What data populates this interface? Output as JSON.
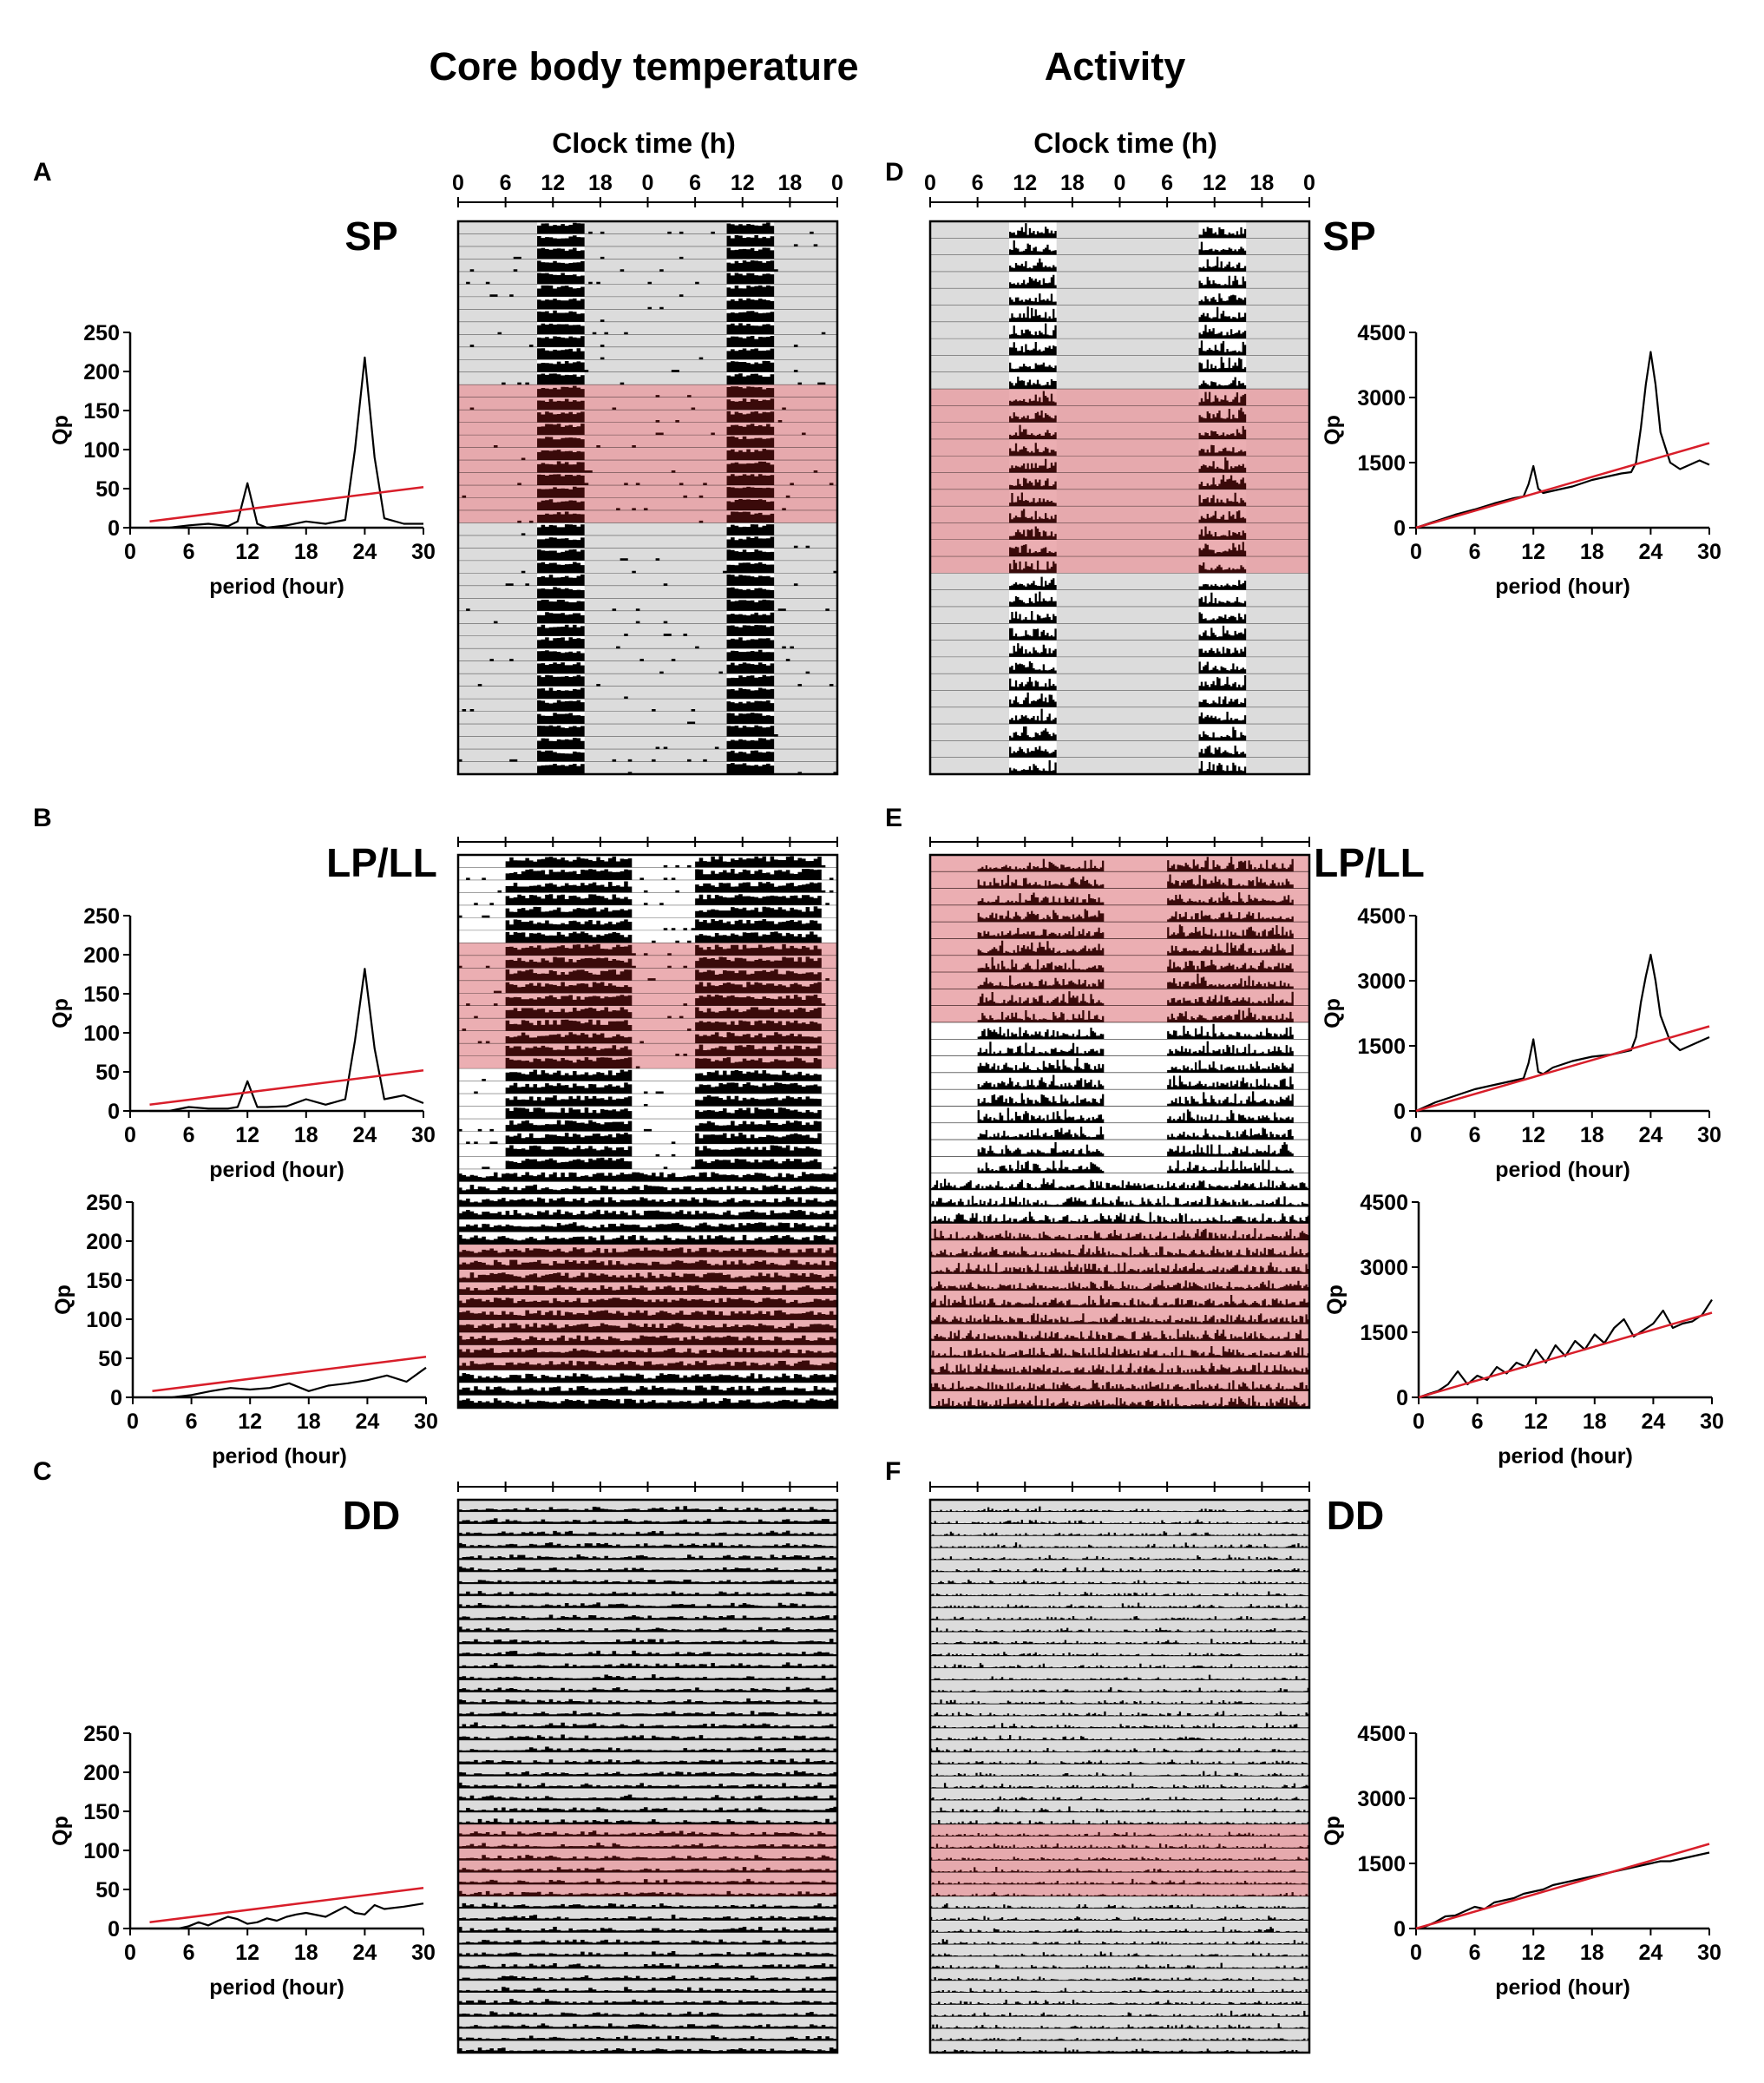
{
  "headers": {
    "temperature": "Core body temperature",
    "activity": "Activity",
    "clock_time_left": "Clock time (h)",
    "clock_time_right": "Clock time (h)"
  },
  "panel_letters": {
    "A": "A",
    "B": "B",
    "C": "C",
    "D": "D",
    "E": "E",
    "F": "F"
  },
  "conditions": {
    "A": "SP",
    "B": "LP/LL",
    "C": "DD",
    "D": "SP",
    "E": "LP/LL",
    "F": "DD"
  },
  "clock_ticks": [
    "0",
    "6",
    "12",
    "18",
    "0",
    "6",
    "12",
    "18",
    "0"
  ],
  "colors": {
    "highlight": "#e8a0a4",
    "line": "#000000",
    "significance": "#d81e2a",
    "background_gray": "#dcdcdc"
  },
  "chart_data": [
    {
      "id": "A_periodogram",
      "type": "line",
      "title": "",
      "xlabel": "period (hour)",
      "ylabel": "Qp",
      "xlim": [
        0,
        30
      ],
      "ylim": [
        0,
        250
      ],
      "xticks": [
        "0",
        "6",
        "12",
        "18",
        "24",
        "30"
      ],
      "yticks": [
        "0",
        "50",
        "100",
        "150",
        "200",
        "250"
      ],
      "series": [
        {
          "name": "Qp",
          "x": [
            2,
            4,
            6,
            8,
            10,
            11,
            12,
            13,
            14,
            16,
            18,
            20,
            22,
            23,
            24,
            25,
            26,
            28,
            30
          ],
          "y": [
            0,
            0,
            3,
            5,
            2,
            8,
            57,
            5,
            0,
            3,
            8,
            5,
            10,
            100,
            218,
            90,
            12,
            5,
            5
          ]
        },
        {
          "name": "significance",
          "x": [
            2,
            30
          ],
          "y": [
            8,
            52
          ]
        }
      ]
    },
    {
      "id": "B_periodogram_top",
      "type": "line",
      "title": "",
      "xlabel": "period (hour)",
      "ylabel": "Qp",
      "xlim": [
        0,
        30
      ],
      "ylim": [
        0,
        250
      ],
      "xticks": [
        "0",
        "6",
        "12",
        "18",
        "24",
        "30"
      ],
      "yticks": [
        "0",
        "50",
        "100",
        "150",
        "200",
        "250"
      ],
      "series": [
        {
          "name": "Qp",
          "x": [
            2,
            4,
            6,
            8,
            10,
            11,
            12,
            13,
            14,
            16,
            18,
            20,
            22,
            23,
            24,
            25,
            26,
            28,
            30
          ],
          "y": [
            0,
            0,
            5,
            3,
            3,
            5,
            38,
            5,
            5,
            6,
            15,
            8,
            15,
            90,
            182,
            80,
            15,
            20,
            10
          ]
        },
        {
          "name": "significance",
          "x": [
            2,
            30
          ],
          "y": [
            8,
            52
          ]
        }
      ]
    },
    {
      "id": "B_periodogram_bottom",
      "type": "line",
      "title": "",
      "xlabel": "period (hour)",
      "ylabel": "Qp",
      "xlim": [
        0,
        30
      ],
      "ylim": [
        0,
        250
      ],
      "xticks": [
        "0",
        "6",
        "12",
        "18",
        "24",
        "30"
      ],
      "yticks": [
        "0",
        "50",
        "100",
        "150",
        "200",
        "250"
      ],
      "series": [
        {
          "name": "Qp",
          "x": [
            2,
            4,
            6,
            8,
            10,
            12,
            14,
            16,
            18,
            20,
            22,
            24,
            26,
            28,
            30
          ],
          "y": [
            0,
            0,
            3,
            8,
            12,
            10,
            12,
            18,
            8,
            15,
            18,
            22,
            28,
            20,
            38
          ]
        },
        {
          "name": "significance",
          "x": [
            2,
            30
          ],
          "y": [
            8,
            52
          ]
        }
      ]
    },
    {
      "id": "C_periodogram",
      "type": "line",
      "title": "",
      "xlabel": "period (hour)",
      "ylabel": "Qp",
      "xlim": [
        0,
        30
      ],
      "ylim": [
        0,
        250
      ],
      "xticks": [
        "0",
        "6",
        "12",
        "18",
        "24",
        "30"
      ],
      "yticks": [
        "0",
        "50",
        "100",
        "150",
        "200",
        "250"
      ],
      "series": [
        {
          "name": "Qp",
          "x": [
            2,
            4,
            5,
            6,
            7,
            8,
            9,
            10,
            11,
            12,
            13,
            14,
            15,
            16,
            17,
            18,
            20,
            22,
            23,
            24,
            25,
            26,
            28,
            30
          ],
          "y": [
            0,
            0,
            0,
            3,
            8,
            4,
            10,
            15,
            12,
            6,
            8,
            13,
            10,
            15,
            18,
            20,
            15,
            28,
            20,
            18,
            30,
            25,
            28,
            32
          ]
        },
        {
          "name": "significance",
          "x": [
            2,
            30
          ],
          "y": [
            8,
            52
          ]
        }
      ]
    },
    {
      "id": "D_periodogram",
      "type": "line",
      "title": "",
      "xlabel": "period (hour)",
      "ylabel": "Qp",
      "xlim": [
        0,
        30
      ],
      "ylim": [
        0,
        4500
      ],
      "xticks": [
        "0",
        "6",
        "12",
        "18",
        "24",
        "30"
      ],
      "yticks": [
        "0",
        "1500",
        "3000",
        "4500"
      ],
      "series": [
        {
          "name": "Qp",
          "x": [
            0,
            2,
            4,
            6,
            8,
            10,
            11,
            11.5,
            12,
            12.5,
            13,
            14,
            16,
            18,
            20,
            21,
            22,
            22.5,
            23,
            23.5,
            24,
            24.5,
            25,
            26,
            27,
            28,
            29,
            30
          ],
          "y": [
            0,
            150,
            300,
            420,
            560,
            680,
            720,
            1000,
            1420,
            900,
            800,
            850,
            950,
            1100,
            1200,
            1250,
            1280,
            1500,
            2300,
            3300,
            4050,
            3300,
            2200,
            1500,
            1350,
            1450,
            1550,
            1450
          ]
        },
        {
          "name": "significance",
          "x": [
            0,
            30
          ],
          "y": [
            0,
            1950
          ]
        }
      ]
    },
    {
      "id": "E_periodogram_top",
      "type": "line",
      "title": "",
      "xlabel": "period (hour)",
      "ylabel": "Qp",
      "xlim": [
        0,
        30
      ],
      "ylim": [
        0,
        4500
      ],
      "xticks": [
        "0",
        "6",
        "12",
        "18",
        "24",
        "30"
      ],
      "yticks": [
        "0",
        "1500",
        "3000",
        "4500"
      ],
      "series": [
        {
          "name": "Qp",
          "x": [
            0,
            2,
            4,
            6,
            8,
            10,
            11,
            11.5,
            12,
            12.5,
            13,
            14,
            16,
            18,
            20,
            21,
            22,
            22.5,
            23,
            23.5,
            24,
            24.5,
            25,
            26,
            27,
            28,
            29,
            30
          ],
          "y": [
            0,
            200,
            350,
            500,
            600,
            700,
            750,
            1100,
            1650,
            900,
            850,
            1000,
            1150,
            1250,
            1300,
            1350,
            1400,
            1700,
            2500,
            3100,
            3600,
            3000,
            2200,
            1600,
            1400,
            1500,
            1600,
            1700
          ]
        },
        {
          "name": "significance",
          "x": [
            0,
            30
          ],
          "y": [
            0,
            1950
          ]
        }
      ]
    },
    {
      "id": "E_periodogram_bottom",
      "type": "line",
      "title": "",
      "xlabel": "period (hour)",
      "ylabel": "Qp",
      "xlim": [
        0,
        30
      ],
      "ylim": [
        0,
        4500
      ],
      "xticks": [
        "0",
        "6",
        "12",
        "18",
        "24",
        "30"
      ],
      "yticks": [
        "0",
        "1500",
        "3000",
        "4500"
      ],
      "series": [
        {
          "name": "Qp",
          "x": [
            0,
            1,
            2,
            3,
            4,
            5,
            6,
            7,
            8,
            9,
            10,
            11,
            12,
            13,
            14,
            15,
            16,
            17,
            18,
            19,
            20,
            21,
            22,
            23,
            24,
            25,
            26,
            27,
            28,
            29,
            30
          ],
          "y": [
            0,
            80,
            150,
            300,
            600,
            300,
            500,
            400,
            700,
            550,
            800,
            700,
            1100,
            800,
            1200,
            950,
            1300,
            1100,
            1450,
            1250,
            1600,
            1800,
            1400,
            1550,
            1700,
            2000,
            1600,
            1700,
            1750,
            1900,
            2250
          ]
        },
        {
          "name": "significance",
          "x": [
            0,
            30
          ],
          "y": [
            0,
            1950
          ]
        }
      ]
    },
    {
      "id": "F_periodogram",
      "type": "line",
      "title": "",
      "xlabel": "period (hour)",
      "ylabel": "Qp",
      "xlim": [
        0,
        30
      ],
      "ylim": [
        0,
        4500
      ],
      "xticks": [
        "0",
        "6",
        "12",
        "18",
        "24",
        "30"
      ],
      "yticks": [
        "0",
        "1500",
        "3000",
        "4500"
      ],
      "series": [
        {
          "name": "Qp",
          "x": [
            0,
            1,
            2,
            3,
            4,
            5,
            6,
            7,
            8,
            9,
            10,
            11,
            12,
            13,
            14,
            15,
            16,
            17,
            18,
            19,
            20,
            21,
            22,
            23,
            24,
            25,
            26,
            27,
            28,
            29,
            30
          ],
          "y": [
            0,
            50,
            150,
            280,
            300,
            400,
            500,
            450,
            600,
            650,
            700,
            800,
            850,
            900,
            1000,
            1050,
            1100,
            1150,
            1200,
            1250,
            1300,
            1350,
            1400,
            1450,
            1500,
            1550,
            1550,
            1600,
            1650,
            1700,
            1750
          ]
        },
        {
          "name": "significance",
          "x": [
            0,
            30
          ],
          "y": [
            0,
            1950
          ]
        }
      ]
    },
    {
      "id": "A_actogram",
      "type": "heatmap",
      "variable": "core body temperature",
      "condition": "SP",
      "rows": 44,
      "xlabel": "Clock time (h)",
      "xticks": [
        "0",
        "6",
        "12",
        "18",
        "0",
        "6",
        "12",
        "18",
        "0"
      ],
      "highlight_rows": [
        13,
        23
      ],
      "active_window_h": [
        10,
        16
      ]
    },
    {
      "id": "B_actogram",
      "type": "heatmap",
      "variable": "core body temperature",
      "condition": "LP/LL",
      "rows": 44,
      "xticks": [
        "0",
        "6",
        "12",
        "18",
        "0",
        "6",
        "12",
        "18",
        "0"
      ],
      "highlight_rows": [
        [
          7,
          16
        ],
        [
          31,
          40
        ]
      ],
      "active_window_h": [
        6,
        22
      ]
    },
    {
      "id": "C_actogram",
      "type": "heatmap",
      "variable": "core body temperature",
      "condition": "DD",
      "rows": 46,
      "xticks": [
        "0",
        "6",
        "12",
        "18",
        "0",
        "6",
        "12",
        "18",
        "0"
      ],
      "highlight_rows": [
        27,
        32
      ]
    },
    {
      "id": "D_actogram",
      "type": "heatmap",
      "variable": "activity",
      "condition": "SP",
      "rows": 33,
      "xlabel": "Clock time (h)",
      "xticks": [
        "0",
        "6",
        "12",
        "18",
        "0",
        "6",
        "12",
        "18",
        "0"
      ],
      "highlight_rows": [
        10,
        20
      ],
      "active_window_h": [
        10,
        16
      ]
    },
    {
      "id": "E_actogram",
      "type": "heatmap",
      "variable": "activity",
      "condition": "LP/LL",
      "rows": 33,
      "xticks": [
        "0",
        "6",
        "12",
        "18",
        "0",
        "6",
        "12",
        "18",
        "0"
      ],
      "highlight_rows": [
        [
          0,
          9
        ],
        [
          22,
          32
        ]
      ],
      "active_window_h": [
        6,
        22
      ]
    },
    {
      "id": "F_actogram",
      "type": "heatmap",
      "variable": "activity",
      "condition": "DD",
      "rows": 46,
      "xticks": [
        "0",
        "6",
        "12",
        "18",
        "0",
        "6",
        "12",
        "18",
        "0"
      ],
      "highlight_rows": [
        27,
        32
      ]
    }
  ]
}
